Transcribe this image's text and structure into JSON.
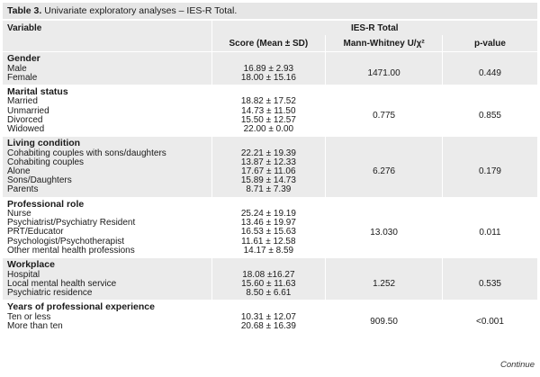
{
  "caption": {
    "label": "Table 3.",
    "text": " Univariate exploratory analyses – IES-R Total."
  },
  "header": {
    "variable": "Variable",
    "group": "IES-R Total",
    "score": "Score (Mean ± SD)",
    "test": "Mann-Whitney U/χ²",
    "pvalue": "p-value"
  },
  "groups": [
    {
      "title": "Gender",
      "rows": [
        [
          "Male",
          "16.89 ± 2.93"
        ],
        [
          "Female",
          "18.00 ± 15.16"
        ]
      ],
      "stat": "1471.00",
      "p": "0.449"
    },
    {
      "title": "Marital status",
      "rows": [
        [
          "Married",
          "18.82 ± 17.52"
        ],
        [
          "Unmarried",
          "14.73 ± 11.50"
        ],
        [
          "Divorced",
          "15.50 ± 12.57"
        ],
        [
          "Widowed",
          "22.00 ± 0.00"
        ]
      ],
      "stat": "0.775",
      "p": "0.855"
    },
    {
      "title": "Living condition",
      "rows": [
        [
          "Cohabiting couples with sons/daughters",
          "22.21 ± 19.39"
        ],
        [
          "Cohabiting couples",
          "13.87 ± 12.33"
        ],
        [
          "Alone",
          "17.67 ± 11.06"
        ],
        [
          "Sons/Daughters",
          "15.89 ± 14.73"
        ],
        [
          "Parents",
          "8.71 ± 7.39"
        ]
      ],
      "stat": "6.276",
      "p": "0.179"
    },
    {
      "title": "Professional role",
      "rows": [
        [
          "Nurse",
          "25.24 ± 19.19"
        ],
        [
          "Psychiatrist/Psychiatry Resident",
          "13.46 ± 19.97"
        ],
        [
          "PRT/Educator",
          "16.53 ± 15.63"
        ],
        [
          "Psychologist/Psychotherapist",
          "11.61 ± 12.58"
        ],
        [
          "Other mental health professions",
          "14.17 ± 8.59"
        ]
      ],
      "stat": "13.030",
      "p": "0.011"
    },
    {
      "title": "Workplace",
      "rows": [
        [
          "Hospital",
          "18.08 ±16.27"
        ],
        [
          "Local mental health service",
          "15.60 ± 11.63"
        ],
        [
          "Psychiatric residence",
          "8.50 ± 6.61"
        ]
      ],
      "stat": "1.252",
      "p": "0.535"
    },
    {
      "title": "Years of professional experience",
      "rows": [
        [
          "Ten or less",
          "10.31 ± 12.07"
        ],
        [
          "More than ten",
          "20.68 ± 16.39"
        ]
      ],
      "stat": "909.50",
      "p": "<0.001"
    }
  ],
  "footer": {
    "continue": "Continue"
  }
}
